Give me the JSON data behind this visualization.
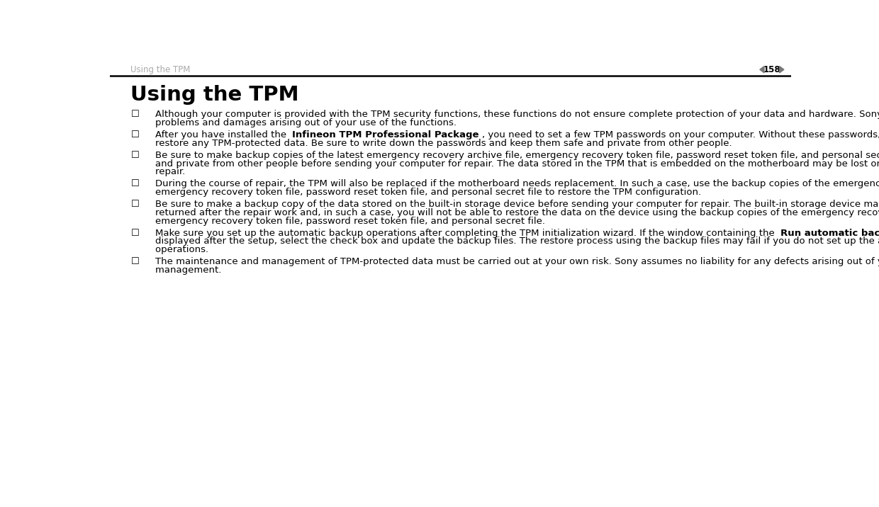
{
  "bg_color": "#ffffff",
  "header_text": "Using the TPM",
  "header_text_color": "#aaaaaa",
  "header_line_color": "#000000",
  "page_number": "158",
  "page_num_color": "#000000",
  "title": "Using the TPM",
  "title_color": "#000000",
  "title_fontsize": 21,
  "body_fontsize": 9.5,
  "body_color": "#000000",
  "header_fontsize": 8.5,
  "bullet_items": [
    [
      {
        "text": "Although your computer is provided with the TPM security functions, these functions do not ensure complete protection of your data and hardware. Sony assumes no liability for any problems and damages arising out of your use of the functions.",
        "bold": false
      }
    ],
    [
      {
        "text": "After you have installed the ",
        "bold": false
      },
      {
        "text": "Infineon TPM Professional Package",
        "bold": true
      },
      {
        "text": ", you need to set a few TPM passwords on your computer. Without these passwords, you will not be able to restore any TPM-protected data. Be sure to write down the passwords and keep them safe and private from other people.",
        "bold": false
      }
    ],
    [
      {
        "text": "Be sure to make backup copies of the latest emergency recovery archive file, emergency recovery token file, password reset token file, and personal secret file and keep them safe and private from other people before sending your computer for repair. The data stored in the TPM that is embedded on the motherboard may be lost or corrupted during the course of repair.",
        "bold": false
      }
    ],
    [
      {
        "text": "During the course of repair, the TPM will also be replaced if the motherboard needs replacement. In such a case, use the backup copies of the emergency recovery archive file, emergency recovery token file, password reset token file, and personal secret file to restore the TPM configuration.",
        "bold": false
      }
    ],
    [
      {
        "text": "Be sure to make a backup copy of the data stored on the built-in storage device before sending your computer for repair. The built-in storage device may be initialized and returned after the repair work and, in such a case, you will not be able to restore the data on the device using the backup copies of the emergency recovery archive file, emergency recovery token file, password reset token file, and personal secret file.",
        "bold": false
      }
    ],
    [
      {
        "text": "Make sure you set up the automatic backup operations after completing the TPM initialization wizard. If the window containing the ",
        "bold": false
      },
      {
        "text": "Run automatic backup now",
        "bold": true
      },
      {
        "text": " check box is displayed after the setup, select the check box and update the backup files. The restore process using the backup files may fail if you do not set up the automatic backup operations.",
        "bold": false
      }
    ],
    [
      {
        "text": "The maintenance and management of TPM-protected data must be carried out at your own risk. Sony assumes no liability for any defects arising out of your data maintenance and management.",
        "bold": false
      }
    ]
  ]
}
